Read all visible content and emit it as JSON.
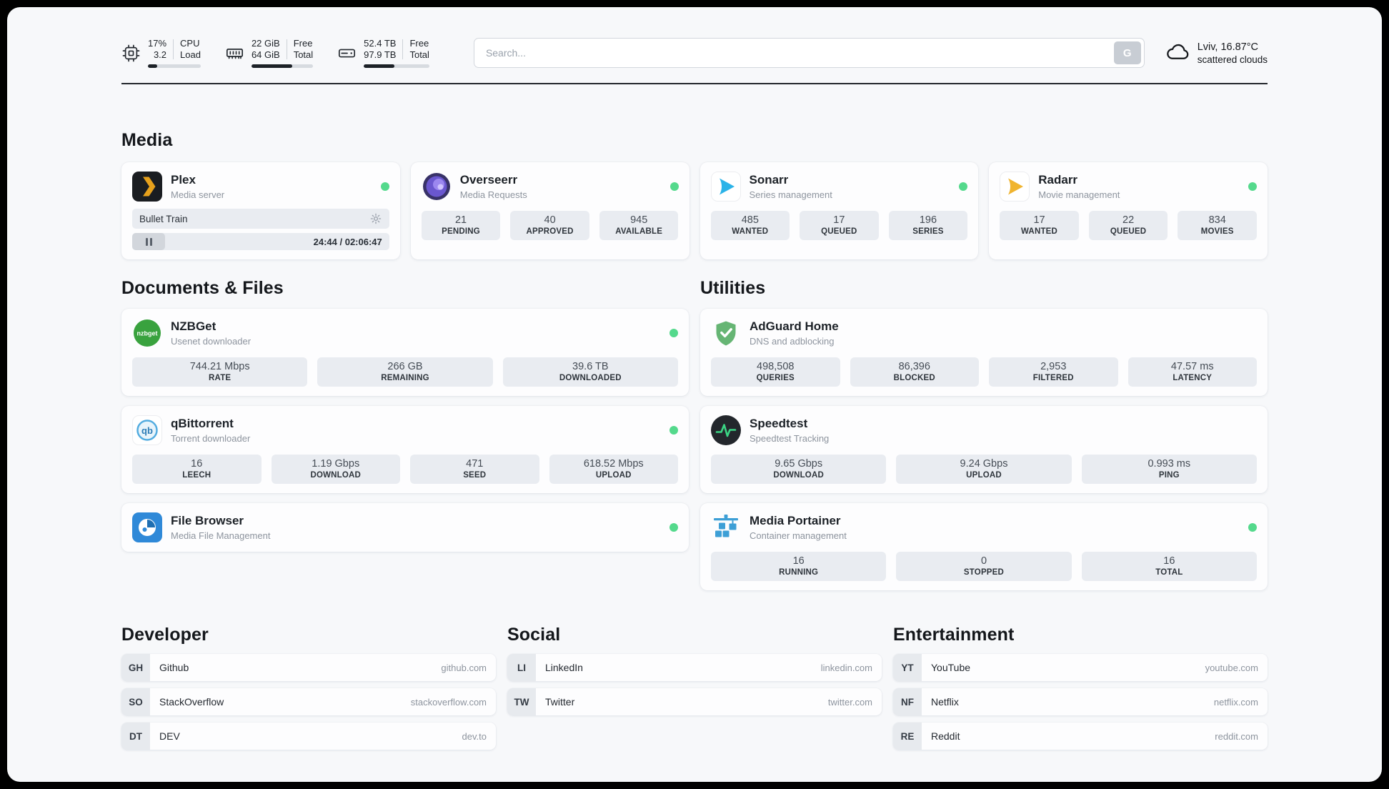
{
  "colors": {
    "status_online": "#54d98c",
    "page_background": "#f7f8fa",
    "tile_background": "#e9ecf1",
    "plex_accent": "#e6a11c",
    "sonarr_accent": "#2bb3e8",
    "radarr_accent": "#f0b42f",
    "adguard_accent": "#66b574",
    "speedtest_accent": "#3bd584"
  },
  "header": {
    "cpu": {
      "icon": "cpu-icon",
      "values": [
        "17%",
        "3.2"
      ],
      "labels": [
        "CPU",
        "Load"
      ],
      "bar_percent": 17
    },
    "ram": {
      "icon": "ram-icon",
      "values": [
        "22 GiB",
        "64 GiB"
      ],
      "labels": [
        "Free",
        "Total"
      ],
      "bar_percent": 66
    },
    "disk": {
      "icon": "disk-icon",
      "values": [
        "52.4 TB",
        "97.9 TB"
      ],
      "labels": [
        "Free",
        "Total"
      ],
      "bar_percent": 47
    },
    "search": {
      "placeholder": "Search...",
      "button_label": "G"
    },
    "weather": {
      "icon": "cloud-icon",
      "location": "Lviv, 16.87°C",
      "condition": "scattered clouds"
    }
  },
  "sections": {
    "media": {
      "title": "Media",
      "cards": [
        {
          "icon": "plex-icon",
          "name": "Plex",
          "subtitle": "Media server",
          "online": true,
          "player": {
            "title": "Bullet Train",
            "time": "24:44 / 02:06:47"
          }
        },
        {
          "icon": "overseerr-icon",
          "name": "Overseerr",
          "subtitle": "Media Requests",
          "online": true,
          "stats": [
            {
              "value": "21",
              "label": "PENDING"
            },
            {
              "value": "40",
              "label": "APPROVED"
            },
            {
              "value": "945",
              "label": "AVAILABLE"
            }
          ]
        },
        {
          "icon": "sonarr-icon",
          "name": "Sonarr",
          "subtitle": "Series management",
          "online": true,
          "stats": [
            {
              "value": "485",
              "label": "WANTED"
            },
            {
              "value": "17",
              "label": "QUEUED"
            },
            {
              "value": "196",
              "label": "SERIES"
            }
          ]
        },
        {
          "icon": "radarr-icon",
          "name": "Radarr",
          "subtitle": "Movie management",
          "online": true,
          "stats": [
            {
              "value": "17",
              "label": "WANTED"
            },
            {
              "value": "22",
              "label": "QUEUED"
            },
            {
              "value": "834",
              "label": "MOVIES"
            }
          ]
        }
      ]
    },
    "documents": {
      "title": "Documents & Files",
      "cards": [
        {
          "icon": "nzbget-icon",
          "name": "NZBGet",
          "subtitle": "Usenet downloader",
          "online": true,
          "stats": [
            {
              "value": "744.21 Mbps",
              "label": "RATE"
            },
            {
              "value": "266 GB",
              "label": "REMAINING"
            },
            {
              "value": "39.6 TB",
              "label": "DOWNLOADED"
            }
          ]
        },
        {
          "icon": "qbittorrent-icon",
          "name": "qBittorrent",
          "subtitle": "Torrent downloader",
          "online": true,
          "stats": [
            {
              "value": "16",
              "label": "LEECH"
            },
            {
              "value": "1.19 Gbps",
              "label": "DOWNLOAD"
            },
            {
              "value": "471",
              "label": "SEED"
            },
            {
              "value": "618.52 Mbps",
              "label": "UPLOAD"
            }
          ]
        },
        {
          "icon": "filebrowser-icon",
          "name": "File Browser",
          "subtitle": "Media File Management",
          "online": true,
          "stats": []
        }
      ]
    },
    "utilities": {
      "title": "Utilities",
      "cards": [
        {
          "icon": "adguard-icon",
          "name": "AdGuard Home",
          "subtitle": "DNS and adblocking",
          "online": false,
          "stats": [
            {
              "value": "498,508",
              "label": "QUERIES"
            },
            {
              "value": "86,396",
              "label": "BLOCKED"
            },
            {
              "value": "2,953",
              "label": "FILTERED"
            },
            {
              "value": "47.57 ms",
              "label": "LATENCY"
            }
          ]
        },
        {
          "icon": "speedtest-icon",
          "name": "Speedtest",
          "subtitle": "Speedtest Tracking",
          "online": false,
          "stats": [
            {
              "value": "9.65 Gbps",
              "label": "DOWNLOAD"
            },
            {
              "value": "9.24 Gbps",
              "label": "UPLOAD"
            },
            {
              "value": "0.993 ms",
              "label": "PING"
            }
          ]
        },
        {
          "icon": "portainer-icon",
          "name": "Media Portainer",
          "subtitle": "Container management",
          "online": true,
          "stats": [
            {
              "value": "16",
              "label": "RUNNING"
            },
            {
              "value": "0",
              "label": "STOPPED"
            },
            {
              "value": "16",
              "label": "TOTAL"
            }
          ]
        }
      ]
    },
    "developer": {
      "title": "Developer",
      "links": [
        {
          "abbr": "GH",
          "name": "Github",
          "url": "github.com"
        },
        {
          "abbr": "SO",
          "name": "StackOverflow",
          "url": "stackoverflow.com"
        },
        {
          "abbr": "DT",
          "name": "DEV",
          "url": "dev.to"
        }
      ]
    },
    "social": {
      "title": "Social",
      "links": [
        {
          "abbr": "LI",
          "name": "LinkedIn",
          "url": "linkedin.com"
        },
        {
          "abbr": "TW",
          "name": "Twitter",
          "url": "twitter.com"
        }
      ]
    },
    "entertainment": {
      "title": "Entertainment",
      "links": [
        {
          "abbr": "YT",
          "name": "YouTube",
          "url": "youtube.com"
        },
        {
          "abbr": "NF",
          "name": "Netflix",
          "url": "netflix.com"
        },
        {
          "abbr": "RE",
          "name": "Reddit",
          "url": "reddit.com"
        }
      ]
    }
  }
}
